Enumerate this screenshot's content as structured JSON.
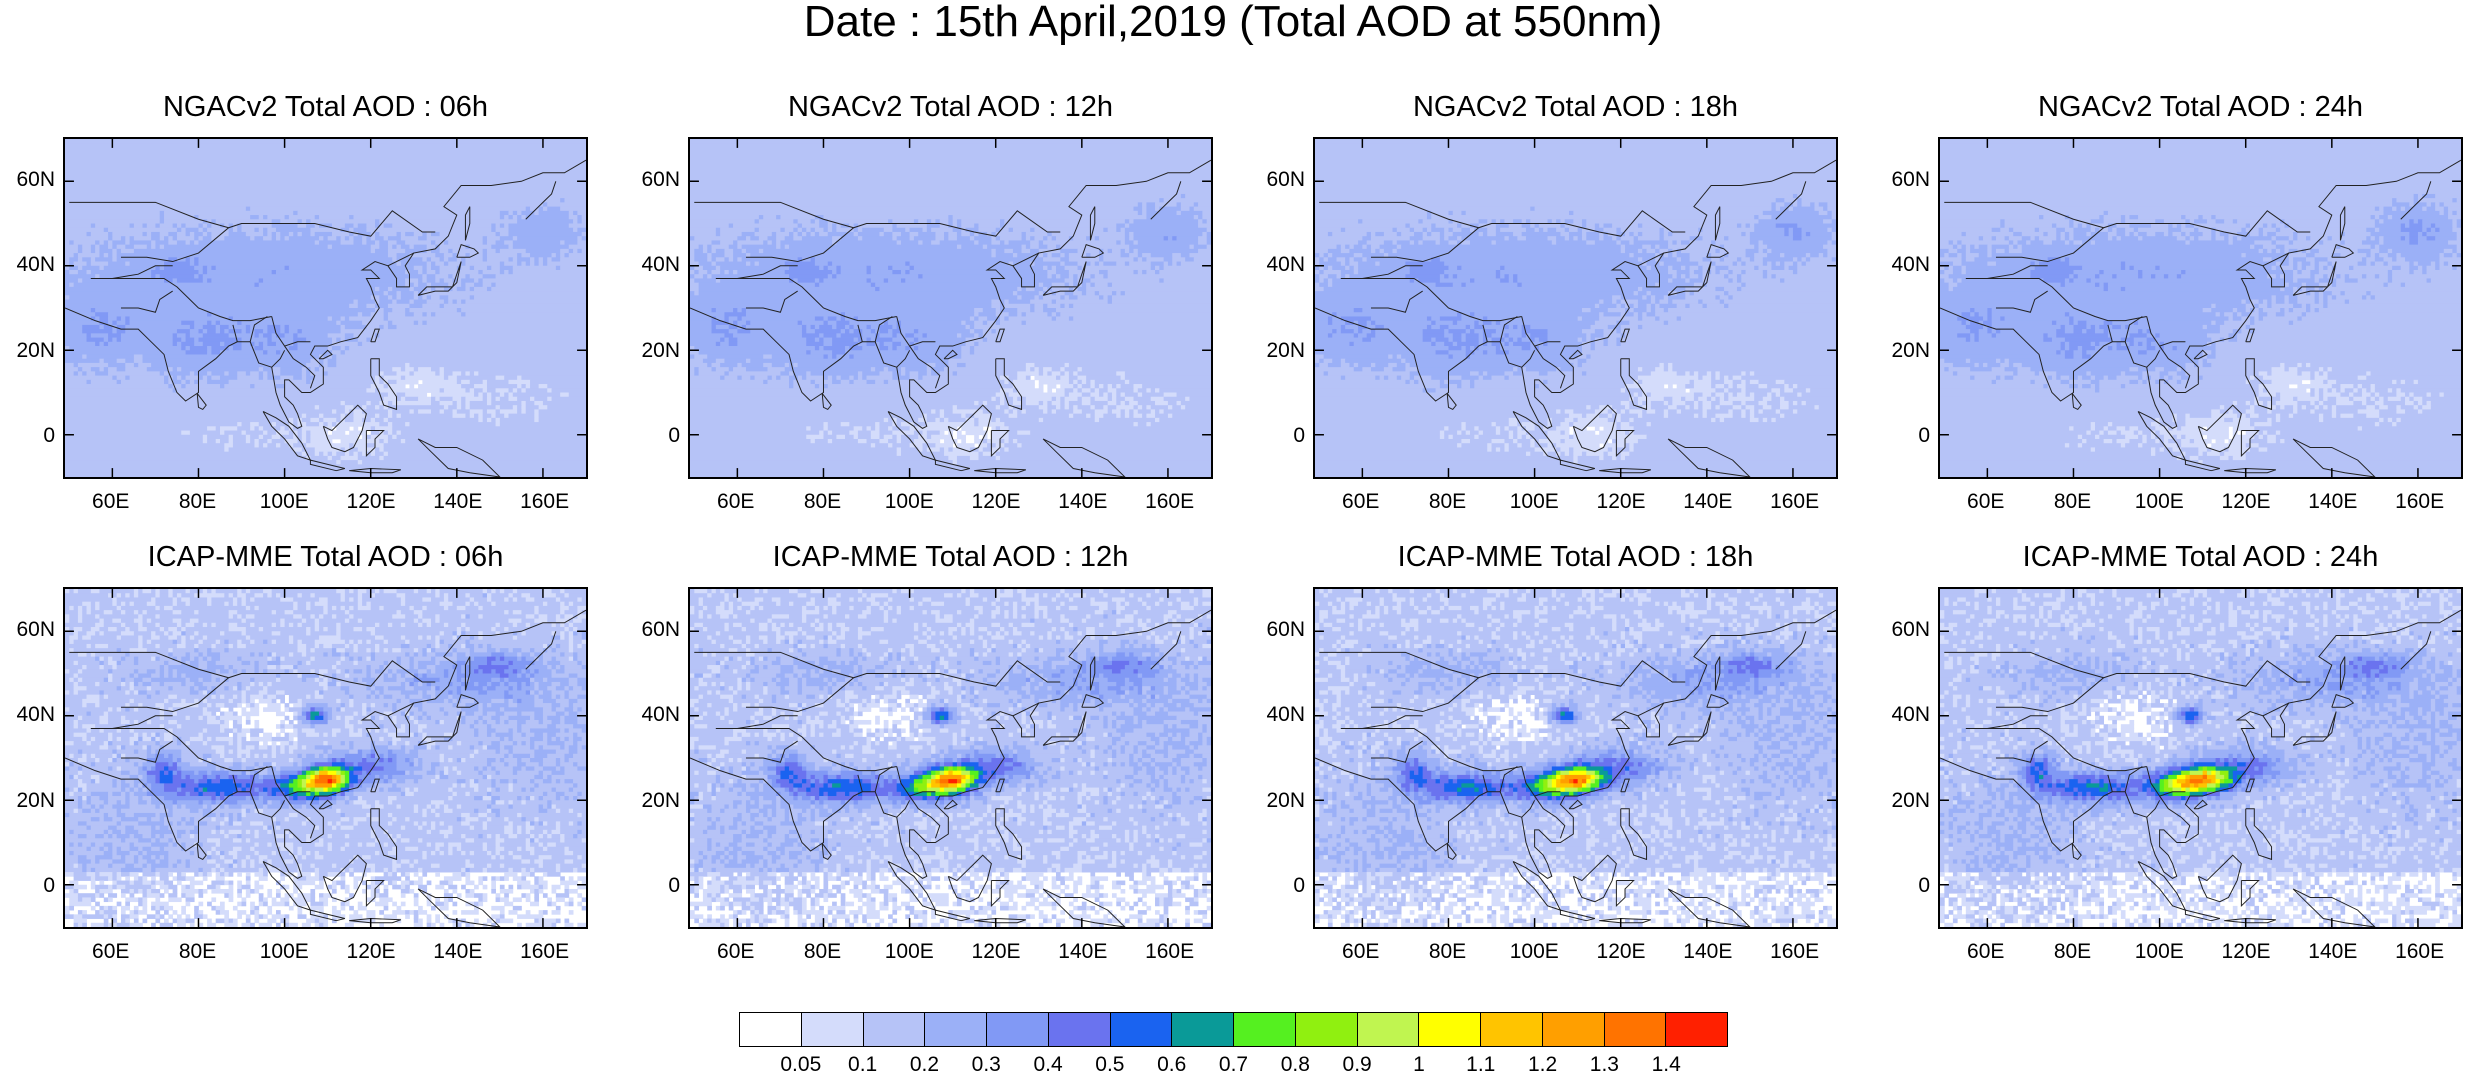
{
  "title": "Date : 15th April,2019 (Total AOD at 550nm)",
  "panels": [
    {
      "title": "NGACv2 Total AOD : 06h",
      "model": "ngac",
      "hour": 6
    },
    {
      "title": "NGACv2 Total AOD : 12h",
      "model": "ngac",
      "hour": 12
    },
    {
      "title": "NGACv2 Total AOD : 18h",
      "model": "ngac",
      "hour": 18
    },
    {
      "title": "NGACv2 Total AOD : 24h",
      "model": "ngac",
      "hour": 24
    },
    {
      "title": "ICAP-MME Total AOD : 06h",
      "model": "icap",
      "hour": 6
    },
    {
      "title": "ICAP-MME Total AOD : 12h",
      "model": "icap",
      "hour": 12
    },
    {
      "title": "ICAP-MME Total AOD : 18h",
      "model": "icap",
      "hour": 18
    },
    {
      "title": "ICAP-MME Total AOD : 24h",
      "model": "icap",
      "hour": 24
    }
  ],
  "axes": {
    "lon_range": [
      49,
      170
    ],
    "lat_range": [
      -10,
      70
    ],
    "lon_ticks": [
      "60E",
      "80E",
      "100E",
      "120E",
      "140E",
      "160E"
    ],
    "lat_ticks": [
      "60N",
      "40N",
      "20N",
      "0"
    ]
  },
  "colorbar": {
    "labels": [
      "0.05",
      "0.1",
      "0.2",
      "0.3",
      "0.4",
      "0.5",
      "0.6",
      "0.7",
      "0.8",
      "0.9",
      "1",
      "1.1",
      "1.2",
      "1.3",
      "1.4"
    ],
    "colors": [
      "#ffffff",
      "#d4dcfb",
      "#b6c3f7",
      "#9bb0f7",
      "#8199f5",
      "#6a73ef",
      "#1a63f0",
      "#0a9a98",
      "#55f020",
      "#90f010",
      "#c0f550",
      "#ffff00",
      "#ffc400",
      "#ff9f00",
      "#ff7300",
      "#ff2000"
    ]
  }
}
